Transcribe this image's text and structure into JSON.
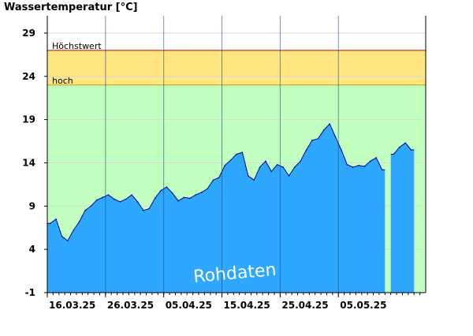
{
  "chart_data": {
    "type": "area",
    "title": "Wassertemperatur [°C]",
    "xlabel": "",
    "ylabel": "",
    "ylim": [
      -1,
      31
    ],
    "yticks": [
      -1,
      4,
      9,
      14,
      19,
      24,
      29
    ],
    "xlim": [
      "2025-03-16",
      "2025-05-19"
    ],
    "xticks": [
      "16.03.25",
      "26.03.25",
      "05.04.25",
      "15.04.25",
      "25.04.25",
      "05.05.25"
    ],
    "xtick_dates": [
      "2025-03-16",
      "2025-03-26",
      "2025-04-05",
      "2025-04-15",
      "2025-04-25",
      "2025-05-05"
    ],
    "grid": true,
    "thresholds": [
      {
        "label": "Höchstwert",
        "value": 27,
        "color": "#cc0000"
      },
      {
        "label": "hoch",
        "value": 23,
        "color": "#c8a000"
      }
    ],
    "bands": [
      {
        "from": -1,
        "to": 23,
        "color": "#c0ffc0"
      },
      {
        "from": 23,
        "to": 27,
        "color": "#ffe680"
      }
    ],
    "area_color": "#2ea8ff",
    "line_color": "#00008b",
    "watermark": "Rohdaten",
    "series": [
      {
        "x": [
          "2025-03-16",
          "2025-03-17",
          "2025-03-18",
          "2025-03-19",
          "2025-03-20",
          "2025-03-21",
          "2025-03-22",
          "2025-03-23",
          "2025-03-24",
          "2025-03-25",
          "2025-03-26",
          "2025-03-27",
          "2025-03-28",
          "2025-03-29",
          "2025-03-30",
          "2025-03-31",
          "2025-04-01",
          "2025-04-02",
          "2025-04-03",
          "2025-04-04",
          "2025-04-05",
          "2025-04-06",
          "2025-04-07",
          "2025-04-08",
          "2025-04-09",
          "2025-04-10",
          "2025-04-11",
          "2025-04-12",
          "2025-04-13",
          "2025-04-14",
          "2025-04-15",
          "2025-04-16",
          "2025-04-17",
          "2025-04-18",
          "2025-04-19",
          "2025-04-20",
          "2025-04-21",
          "2025-04-22",
          "2025-04-23",
          "2025-04-24",
          "2025-04-25",
          "2025-04-26",
          "2025-04-27",
          "2025-04-28",
          "2025-04-29",
          "2025-04-30",
          "2025-05-01",
          "2025-05-02",
          "2025-05-03",
          "2025-05-04",
          "2025-05-05",
          "2025-05-06",
          "2025-05-07",
          "2025-05-08",
          "2025-05-09",
          "2025-05-10",
          "2025-05-11",
          "2025-05-12",
          "2025-05-13",
          "2025-05-14",
          "2025-05-15",
          "2025-05-16",
          "2025-05-17",
          "2025-05-18",
          "2025-05-19"
        ],
        "values": [
          7.0,
          7.5,
          5.5,
          5.0,
          6.2,
          7.2,
          8.5,
          9.0,
          9.7,
          10.0,
          10.3,
          9.8,
          9.5,
          9.8,
          10.3,
          9.5,
          8.5,
          8.7,
          9.9,
          10.8,
          11.2,
          10.5,
          9.6,
          10.0,
          9.9,
          10.3,
          10.6,
          11.0,
          12.0,
          12.3,
          13.7,
          14.3,
          15.0,
          15.2,
          12.5,
          12.0,
          13.5,
          14.2,
          13.0,
          13.8,
          13.5,
          12.5,
          13.5,
          14.2,
          15.5,
          16.6,
          16.8,
          17.8,
          18.5,
          17.0,
          15.5,
          13.8,
          13.5,
          13.7,
          13.6,
          14.2,
          14.6,
          13.2,
          null,
          15.0,
          15.8,
          16.3,
          15.5,
          null,
          null
        ]
      }
    ]
  }
}
